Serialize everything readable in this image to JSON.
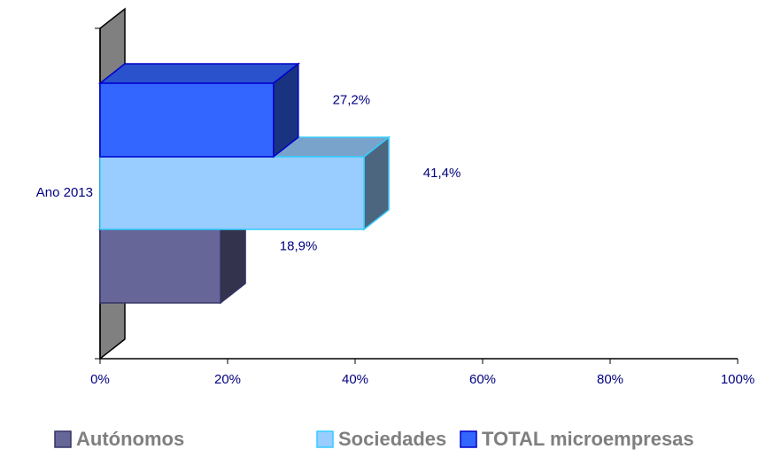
{
  "chart_data": {
    "type": "bar3d_horizontal",
    "categories": [
      "Ano 2013"
    ],
    "series": [
      {
        "name": "Autónomos",
        "color": "#666699",
        "values": [
          18.9
        ],
        "value_labels": [
          "18,9%"
        ]
      },
      {
        "name": "Sociedades",
        "color": "#99ccff",
        "values": [
          41.4
        ],
        "value_labels": [
          "41,4%"
        ]
      },
      {
        "name": "TOTAL microempresas",
        "color": "#3366ff",
        "values": [
          27.2
        ],
        "value_labels": [
          "27,2%"
        ]
      }
    ],
    "xlim": [
      0,
      100
    ],
    "xticks": [
      {
        "value": 0,
        "label": "0%"
      },
      {
        "value": 20,
        "label": "20%"
      },
      {
        "value": 40,
        "label": "40%"
      },
      {
        "value": 60,
        "label": "60%"
      },
      {
        "value": 80,
        "label": "80%"
      },
      {
        "value": 100,
        "label": "100%"
      }
    ],
    "legend": "bottom"
  }
}
